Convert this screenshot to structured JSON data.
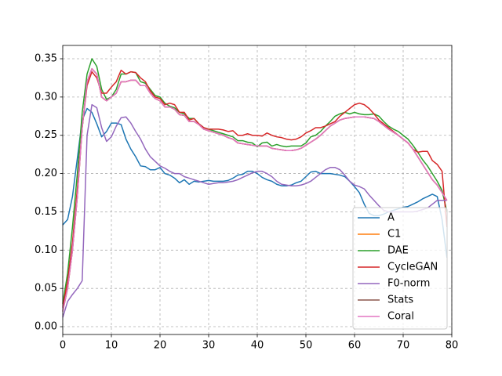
{
  "chart_data": {
    "type": "line",
    "x": [
      0,
      1,
      2,
      3,
      4,
      5,
      6,
      7,
      8,
      9,
      10,
      11,
      12,
      13,
      14,
      15,
      16,
      17,
      18,
      19,
      20,
      21,
      22,
      23,
      24,
      25,
      26,
      27,
      28,
      29,
      30,
      31,
      32,
      33,
      34,
      35,
      36,
      37,
      38,
      39,
      40,
      41,
      42,
      43,
      44,
      45,
      46,
      47,
      48,
      49,
      50,
      51,
      52,
      53,
      54,
      55,
      56,
      57,
      58,
      59,
      60,
      61,
      62,
      63,
      64,
      65,
      66,
      67,
      68,
      69,
      70,
      71,
      72,
      73,
      74,
      75,
      76,
      77,
      78,
      79
    ],
    "series": [
      {
        "name": "A",
        "color": "#1f77b4",
        "values": [
          0.133,
          0.14,
          0.17,
          0.22,
          0.27,
          0.285,
          0.28,
          0.265,
          0.248,
          0.255,
          0.266,
          0.266,
          0.264,
          0.245,
          0.232,
          0.222,
          0.21,
          0.209,
          0.205,
          0.205,
          0.208,
          0.2,
          0.198,
          0.194,
          0.188,
          0.192,
          0.186,
          0.19,
          0.189,
          0.19,
          0.191,
          0.19,
          0.19,
          0.19,
          0.191,
          0.194,
          0.198,
          0.199,
          0.203,
          0.203,
          0.2,
          0.195,
          0.192,
          0.19,
          0.186,
          0.184,
          0.184,
          0.185,
          0.188,
          0.19,
          0.196,
          0.202,
          0.203,
          0.2,
          0.2,
          0.2,
          0.199,
          0.198,
          0.196,
          0.19,
          0.183,
          0.175,
          0.16,
          0.148,
          0.145,
          0.145,
          0.147,
          0.15,
          0.152,
          0.154,
          0.156,
          0.157,
          0.16,
          0.163,
          0.167,
          0.17,
          0.173,
          0.17,
          0.14,
          0.09
        ]
      },
      {
        "name": "C1",
        "color": "#ff7f0e",
        "values": [
          0.02,
          0.05,
          0.1,
          0.17,
          0.26,
          0.32,
          0.337,
          0.33,
          0.3,
          0.295,
          0.3,
          0.305,
          0.32,
          0.32,
          0.322,
          0.322,
          0.315,
          0.315,
          0.305,
          0.298,
          0.295,
          0.287,
          0.287,
          0.284,
          0.277,
          0.276,
          0.268,
          0.268,
          0.264,
          0.258,
          0.256,
          0.254,
          0.252,
          0.25,
          0.247,
          0.245,
          0.24,
          0.239,
          0.238,
          0.237,
          0.236,
          0.236,
          0.236,
          0.233,
          0.232,
          0.231,
          0.23,
          0.23,
          0.231,
          0.233,
          0.237,
          0.241,
          0.245,
          0.25,
          0.256,
          0.262,
          0.266,
          0.27,
          0.272,
          0.273,
          0.274,
          0.274,
          0.274,
          0.273,
          0.272,
          0.268,
          0.263,
          0.258,
          0.254,
          0.25,
          0.245,
          0.24,
          0.232,
          0.222,
          0.212,
          0.202,
          0.192,
          0.185,
          0.175,
          0.165
        ]
      },
      {
        "name": "DAE",
        "color": "#2ca02c",
        "values": [
          0.03,
          0.07,
          0.13,
          0.2,
          0.28,
          0.33,
          0.35,
          0.34,
          0.31,
          0.297,
          0.3,
          0.31,
          0.33,
          0.33,
          0.333,
          0.332,
          0.32,
          0.318,
          0.31,
          0.302,
          0.3,
          0.292,
          0.288,
          0.286,
          0.28,
          0.278,
          0.272,
          0.272,
          0.265,
          0.26,
          0.258,
          0.256,
          0.254,
          0.252,
          0.25,
          0.248,
          0.243,
          0.243,
          0.241,
          0.24,
          0.235,
          0.24,
          0.241,
          0.236,
          0.238,
          0.236,
          0.235,
          0.236,
          0.236,
          0.236,
          0.24,
          0.248,
          0.25,
          0.255,
          0.262,
          0.268,
          0.275,
          0.278,
          0.28,
          0.278,
          0.28,
          0.278,
          0.277,
          0.277,
          0.278,
          0.275,
          0.268,
          0.262,
          0.258,
          0.255,
          0.25,
          0.245,
          0.237,
          0.228,
          0.218,
          0.21,
          0.2,
          0.19,
          0.178,
          0.15
        ]
      },
      {
        "name": "CycleGAN",
        "color": "#d62728",
        "values": [
          0.025,
          0.06,
          0.11,
          0.18,
          0.26,
          0.315,
          0.333,
          0.325,
          0.305,
          0.305,
          0.313,
          0.32,
          0.335,
          0.33,
          0.333,
          0.332,
          0.325,
          0.32,
          0.308,
          0.3,
          0.298,
          0.29,
          0.292,
          0.29,
          0.28,
          0.28,
          0.27,
          0.272,
          0.265,
          0.26,
          0.258,
          0.258,
          0.258,
          0.257,
          0.255,
          0.256,
          0.25,
          0.25,
          0.252,
          0.25,
          0.25,
          0.249,
          0.253,
          0.25,
          0.248,
          0.247,
          0.245,
          0.244,
          0.245,
          0.248,
          0.253,
          0.256,
          0.26,
          0.26,
          0.262,
          0.265,
          0.268,
          0.275,
          0.28,
          0.285,
          0.29,
          0.292,
          0.29,
          0.285,
          0.278,
          0.27,
          0.265,
          0.26,
          0.255,
          0.25,
          0.245,
          0.24,
          0.232,
          0.228,
          0.229,
          0.229,
          0.217,
          0.212,
          0.203,
          0.13
        ]
      },
      {
        "name": "F0-norm",
        "color": "#9467bd",
        "values": [
          0.012,
          0.033,
          0.042,
          0.05,
          0.06,
          0.25,
          0.29,
          0.286,
          0.26,
          0.242,
          0.248,
          0.262,
          0.273,
          0.274,
          0.266,
          0.255,
          0.245,
          0.232,
          0.222,
          0.216,
          0.21,
          0.207,
          0.203,
          0.2,
          0.2,
          0.196,
          0.194,
          0.192,
          0.19,
          0.188,
          0.186,
          0.187,
          0.188,
          0.188,
          0.189,
          0.19,
          0.192,
          0.195,
          0.198,
          0.201,
          0.203,
          0.203,
          0.2,
          0.196,
          0.19,
          0.186,
          0.185,
          0.184,
          0.184,
          0.185,
          0.187,
          0.19,
          0.195,
          0.2,
          0.205,
          0.208,
          0.208,
          0.205,
          0.198,
          0.19,
          0.185,
          0.183,
          0.18,
          0.172,
          0.165,
          0.158,
          0.152,
          0.15,
          0.15,
          0.15,
          0.15,
          0.15,
          0.15,
          0.151,
          0.153,
          0.155,
          0.16,
          0.165,
          0.165,
          0.165
        ]
      },
      {
        "name": "Stats",
        "color": "#8c564b",
        "values": [
          0.02,
          0.05,
          0.1,
          0.17,
          0.26,
          0.32,
          0.337,
          0.33,
          0.3,
          0.295,
          0.3,
          0.305,
          0.32,
          0.32,
          0.322,
          0.322,
          0.315,
          0.315,
          0.305,
          0.298,
          0.295,
          0.287,
          0.287,
          0.284,
          0.277,
          0.276,
          0.268,
          0.268,
          0.264,
          0.258,
          0.256,
          0.254,
          0.252,
          0.25,
          0.247,
          0.245,
          0.24,
          0.239,
          0.238,
          0.237,
          0.236,
          0.236,
          0.236,
          0.233,
          0.232,
          0.231,
          0.23,
          0.23,
          0.231,
          0.233,
          0.237,
          0.241,
          0.245,
          0.25,
          0.256,
          0.262,
          0.266,
          0.27,
          0.272,
          0.273,
          0.274,
          0.274,
          0.274,
          0.273,
          0.272,
          0.268,
          0.263,
          0.258,
          0.254,
          0.25,
          0.245,
          0.24,
          0.232,
          0.222,
          0.212,
          0.202,
          0.192,
          0.185,
          0.175,
          0.165
        ]
      },
      {
        "name": "Coral",
        "color": "#e377c2",
        "values": [
          0.02,
          0.05,
          0.1,
          0.17,
          0.26,
          0.32,
          0.337,
          0.33,
          0.3,
          0.295,
          0.3,
          0.305,
          0.32,
          0.32,
          0.322,
          0.322,
          0.315,
          0.315,
          0.305,
          0.298,
          0.295,
          0.287,
          0.287,
          0.284,
          0.277,
          0.276,
          0.268,
          0.268,
          0.264,
          0.258,
          0.256,
          0.254,
          0.252,
          0.25,
          0.247,
          0.245,
          0.24,
          0.239,
          0.238,
          0.237,
          0.236,
          0.236,
          0.236,
          0.233,
          0.232,
          0.231,
          0.23,
          0.23,
          0.231,
          0.233,
          0.237,
          0.241,
          0.245,
          0.25,
          0.256,
          0.262,
          0.266,
          0.27,
          0.272,
          0.273,
          0.274,
          0.274,
          0.274,
          0.273,
          0.272,
          0.268,
          0.263,
          0.258,
          0.254,
          0.25,
          0.245,
          0.24,
          0.232,
          0.222,
          0.212,
          0.202,
          0.192,
          0.185,
          0.175,
          0.165
        ]
      }
    ],
    "xlim": [
      0,
      80
    ],
    "xticks": [
      0,
      10,
      20,
      30,
      40,
      50,
      60,
      70,
      80
    ],
    "ylim": [
      -0.0102,
      0.3674
    ],
    "yticks": [
      {
        "value": 0,
        "label": "0.00"
      },
      {
        "value": 0.05,
        "label": "0.05"
      },
      {
        "value": 0.1,
        "label": "0.10"
      },
      {
        "value": 0.15,
        "label": "0.15"
      },
      {
        "value": 0.2,
        "label": "0.20"
      },
      {
        "value": 0.25,
        "label": "0.25"
      },
      {
        "value": 0.3,
        "label": "0.30"
      },
      {
        "value": 0.35,
        "label": "0.35"
      }
    ],
    "grid": true,
    "legend": "lower right"
  }
}
